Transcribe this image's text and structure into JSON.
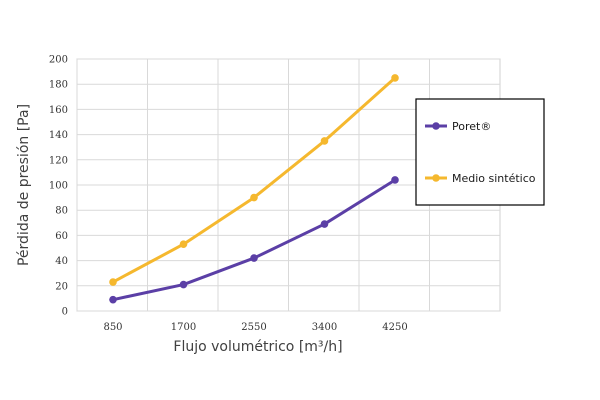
{
  "chart_data": {
    "type": "line",
    "categories": [
      "850",
      "1700",
      "2550",
      "3400",
      "4250"
    ],
    "series": [
      {
        "name": "Poret®",
        "values": [
          9,
          21,
          42,
          69,
          104
        ],
        "color": "#5b3fa6"
      },
      {
        "name": "Medio sintético",
        "values": [
          23,
          53,
          90,
          135,
          185
        ],
        "color": "#f5b82e"
      }
    ],
    "xlabel": "Flujo volumétrico [m³/h]",
    "ylabel": "Pérdida de presión [Pa]",
    "ylim": [
      0,
      200
    ],
    "yticks": [
      "0",
      "20",
      "40",
      "60",
      "80",
      "100",
      "120",
      "140",
      "160",
      "180",
      "200"
    ],
    "grid": true,
    "legend_position": "right"
  }
}
